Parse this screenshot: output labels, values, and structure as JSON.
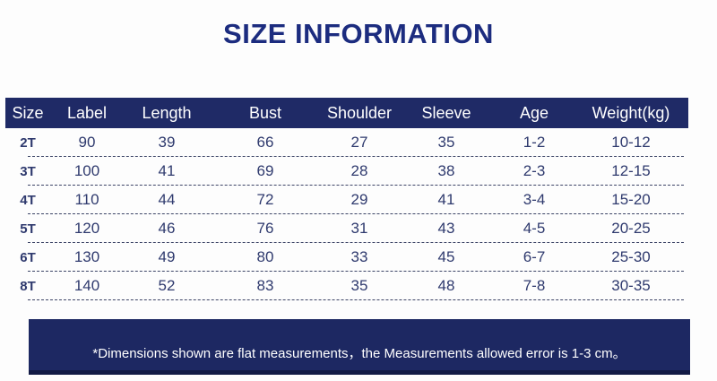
{
  "title": "SIZE INFORMATION",
  "colors": {
    "title_blue": "#1c2c7f",
    "header_bar_navy": "#1f2a66",
    "footer_bar_navy": "#1d2862",
    "row_text_navy": "#2f3a6e"
  },
  "table": {
    "headers": [
      "Size",
      "Label",
      "Length",
      "Bust",
      "Shoulder",
      "Sleeve",
      "Age",
      "Weight(kg)"
    ],
    "rows": [
      [
        "2T",
        "90",
        "39",
        "66",
        "27",
        "35",
        "1-2",
        "10-12"
      ],
      [
        "3T",
        "100",
        "41",
        "69",
        "28",
        "38",
        "2-3",
        "12-15"
      ],
      [
        "4T",
        "110",
        "44",
        "72",
        "29",
        "41",
        "3-4",
        "15-20"
      ],
      [
        "5T",
        "120",
        "46",
        "76",
        "31",
        "43",
        "4-5",
        "20-25"
      ],
      [
        "6T",
        "130",
        "49",
        "80",
        "33",
        "45",
        "6-7",
        "25-30"
      ],
      [
        "8T",
        "140",
        "52",
        "83",
        "35",
        "48",
        "7-8",
        "30-35"
      ]
    ]
  },
  "footnote": "*Dimensions shown are flat measurements，the Measurements allowed error is 1-3 cm。"
}
